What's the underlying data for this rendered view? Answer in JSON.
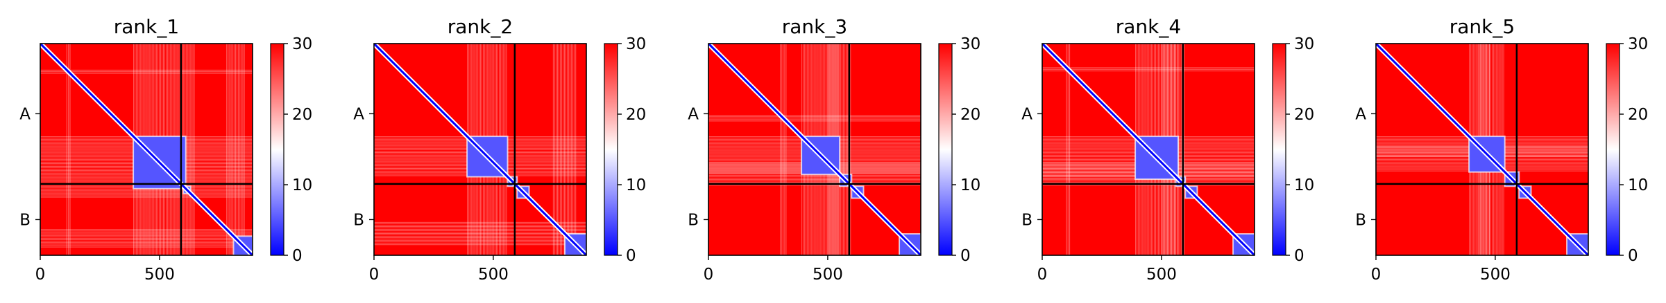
{
  "chart_data": {
    "type": "heatmap",
    "colormap": {
      "name": "bwr",
      "low": "#0000ff",
      "mid": "#ffffff",
      "high": "#ff0000"
    },
    "colorbar": {
      "vmin": 0,
      "vmax": 30,
      "ticks": [
        "0",
        "10",
        "20",
        "30"
      ]
    },
    "xlim": [
      0,
      890
    ],
    "chain_boundary": 590,
    "x_ticks": [
      {
        "value": 0,
        "label": "0"
      },
      {
        "value": 500,
        "label": "500"
      }
    ],
    "y_ticks": [
      {
        "value": 295,
        "label": "A"
      },
      {
        "value": 740,
        "label": "B"
      }
    ],
    "panels": [
      {
        "title": "rank_1",
        "blue_domains": [
          [
            390,
            610
          ],
          [
            600,
            630
          ],
          [
            810,
            890
          ]
        ],
        "white_stripes": [
          [
            110,
            130
          ],
          [
            390,
            610
          ],
          [
            610,
            650
          ],
          [
            780,
            860
          ]
        ]
      },
      {
        "title": "rank_2",
        "blue_domains": [
          [
            390,
            560
          ],
          [
            560,
            600
          ],
          [
            600,
            650
          ],
          [
            800,
            890
          ]
        ],
        "white_stripes": [
          [
            390,
            560
          ],
          [
            750,
            850
          ]
        ]
      },
      {
        "title": "rank_3",
        "blue_domains": [
          [
            390,
            550
          ],
          [
            550,
            600
          ],
          [
            600,
            650
          ],
          [
            800,
            890
          ]
        ],
        "white_stripes": [
          [
            300,
            330
          ],
          [
            390,
            550
          ],
          [
            500,
            600
          ]
        ]
      },
      {
        "title": "rank_4",
        "blue_domains": [
          [
            390,
            570
          ],
          [
            560,
            600
          ],
          [
            600,
            650
          ],
          [
            800,
            890
          ]
        ],
        "white_stripes": [
          [
            100,
            120
          ],
          [
            390,
            570
          ],
          [
            500,
            600
          ]
        ]
      },
      {
        "title": "rank_5",
        "blue_domains": [
          [
            390,
            540
          ],
          [
            540,
            600
          ],
          [
            600,
            650
          ],
          [
            800,
            890
          ]
        ],
        "white_stripes": [
          [
            390,
            540
          ],
          [
            430,
            480
          ]
        ]
      }
    ]
  }
}
